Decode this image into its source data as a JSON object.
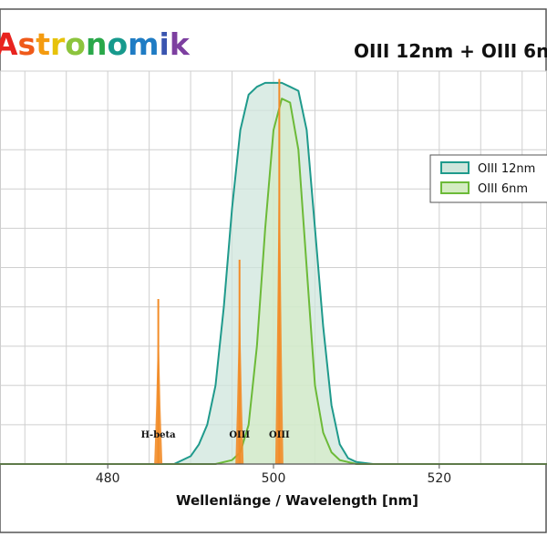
{
  "logo": {
    "text": "Astronomik",
    "colors": [
      "#e8231f",
      "#ef5a1a",
      "#f49b10",
      "#e7c20a",
      "#8cc43d",
      "#2aa84a",
      "#179a8d",
      "#1f7cc4",
      "#3a55b0",
      "#7d3fa0"
    ]
  },
  "header": {
    "title": "OIII 12nm + OIII 6nm"
  },
  "chart_data": {
    "type": "area",
    "title": "OIII 12nm + OIII 6nm",
    "xlabel": "Wellenlänge / Wavelength [nm]",
    "ylabel": "",
    "xlim": [
      467,
      533
    ],
    "ylim": [
      0,
      100
    ],
    "x_ticks": [
      480,
      500,
      520
    ],
    "grid": true,
    "legend_position": "right",
    "series": [
      {
        "name": "OIII 12nm",
        "line_color": "#1f9a8c",
        "fill_color": "#cfe6dc",
        "points": [
          [
            467,
            0
          ],
          [
            488,
            0
          ],
          [
            490,
            2
          ],
          [
            491,
            5
          ],
          [
            492,
            10
          ],
          [
            493,
            20
          ],
          [
            494,
            40
          ],
          [
            495,
            65
          ],
          [
            496,
            85
          ],
          [
            497,
            94
          ],
          [
            498,
            96
          ],
          [
            499,
            97
          ],
          [
            501,
            97
          ],
          [
            502,
            96
          ],
          [
            503,
            95
          ],
          [
            504,
            85
          ],
          [
            505,
            60
          ],
          [
            506,
            35
          ],
          [
            507,
            15
          ],
          [
            508,
            5
          ],
          [
            509,
            1.5
          ],
          [
            510,
            0.5
          ],
          [
            512,
            0
          ],
          [
            533,
            0
          ]
        ]
      },
      {
        "name": "OIII 6nm",
        "line_color": "#6cba38",
        "fill_color": "#d4ecc2",
        "points": [
          [
            467,
            0
          ],
          [
            493,
            0
          ],
          [
            495,
            1
          ],
          [
            496,
            3
          ],
          [
            497,
            10
          ],
          [
            498,
            30
          ],
          [
            499,
            60
          ],
          [
            500,
            85
          ],
          [
            501,
            93
          ],
          [
            502,
            92
          ],
          [
            503,
            80
          ],
          [
            504,
            50
          ],
          [
            505,
            20
          ],
          [
            506,
            8
          ],
          [
            507,
            3
          ],
          [
            508,
            1
          ],
          [
            510,
            0
          ],
          [
            533,
            0
          ]
        ]
      }
    ],
    "emission_lines": [
      {
        "label": "H-beta",
        "wavelength": 486.1,
        "height": 42
      },
      {
        "label": "OIII",
        "wavelength": 495.9,
        "height": 52
      },
      {
        "label": "OIII",
        "wavelength": 500.7,
        "height": 98
      }
    ],
    "emission_color": "#f28c28"
  }
}
